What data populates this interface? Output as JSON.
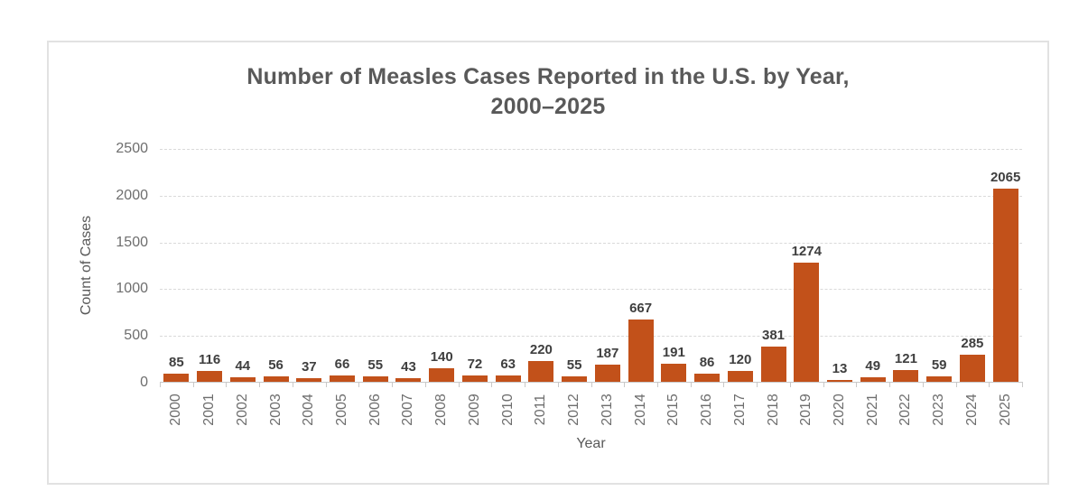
{
  "chart_data": {
    "type": "bar",
    "title": "Number of Measles Cases Reported in the U.S. by Year, 2000–2025",
    "title_line1": "Number of Measles Cases Reported in the U.S. by Year,",
    "title_line2": "2000–2025",
    "xlabel": "Year",
    "ylabel": "Count of Cases",
    "categories": [
      "2000",
      "2001",
      "2002",
      "2003",
      "2004",
      "2005",
      "2006",
      "2007",
      "2008",
      "2009",
      "2010",
      "2011",
      "2012",
      "2013",
      "2014",
      "2015",
      "2016",
      "2017",
      "2018",
      "2019",
      "2020",
      "2021",
      "2022",
      "2023",
      "2024",
      "2025"
    ],
    "values": [
      85,
      116,
      44,
      56,
      37,
      66,
      55,
      43,
      140,
      72,
      63,
      220,
      55,
      187,
      667,
      191,
      86,
      120,
      381,
      1274,
      13,
      49,
      121,
      59,
      285,
      2065
    ],
    "ylim": [
      0,
      2500
    ],
    "yticks": [
      0,
      500,
      1000,
      1500,
      2000,
      2500
    ],
    "grid": "horizontal-dashed",
    "legend": "none",
    "data_labels_shown": true,
    "colors": {
      "bar": "#c2511a",
      "title_text": "#595959",
      "data_label_text": "#3f3f3f",
      "tick_label_text": "#6e6e6e",
      "axis_title_text": "#595959",
      "gridline": "#d9d9d9",
      "axis_line": "#c9c9c9",
      "frame_border": "#e2e2e2",
      "background": "#ffffff"
    }
  }
}
